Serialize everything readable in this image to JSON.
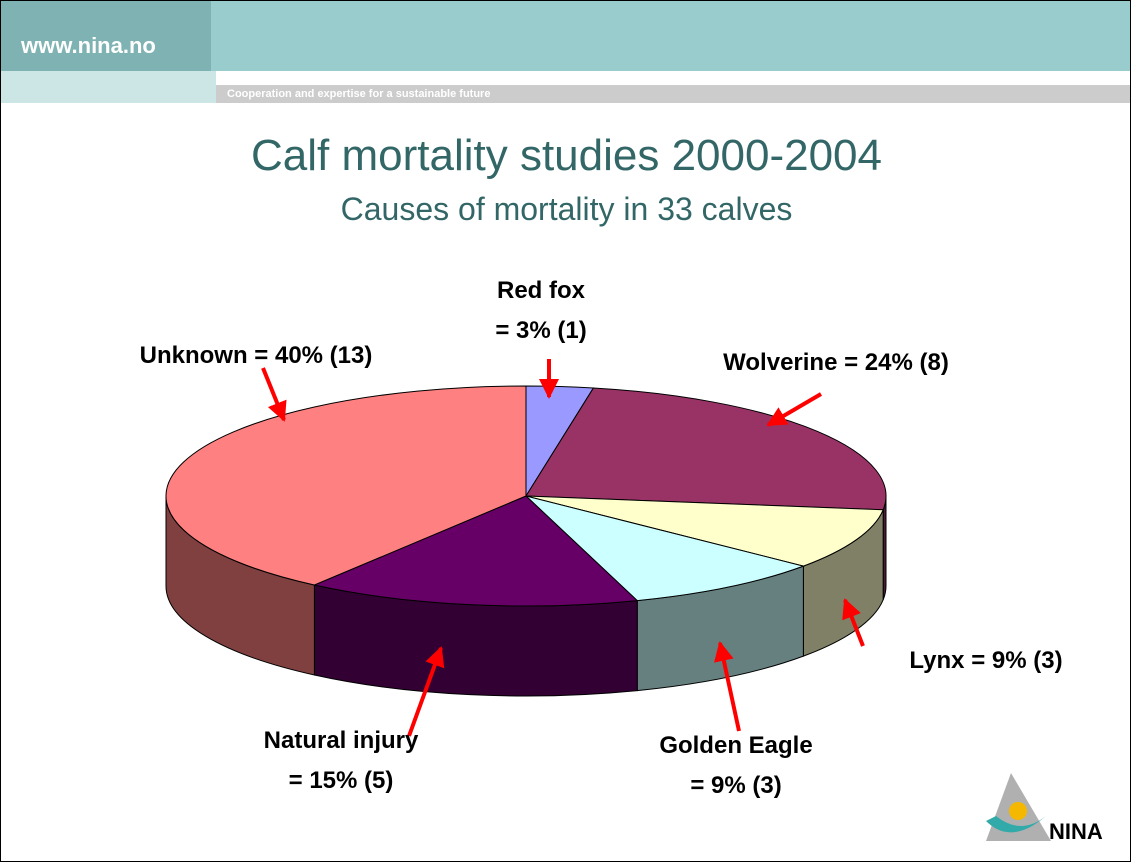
{
  "header": {
    "site": "www.nina.no",
    "tagline": "Cooperation and expertise for a sustainable future"
  },
  "chart_data": {
    "type": "pie",
    "title": "Calf mortality studies 2000-2004",
    "subtitle": "Causes of mortality in 33 calves",
    "categories": [
      "Red fox",
      "Wolverine",
      "Lynx",
      "Golden Eagle",
      "Natural injury",
      "Unknown"
    ],
    "values": [
      3,
      24,
      9,
      9,
      15,
      40
    ],
    "value_labels": [
      "= 3% (1)",
      "= 24% (8)",
      "= 9% (3)",
      "= 9% (3)",
      "= 15% (5)",
      "= 40% (13)"
    ],
    "colors": [
      "#9999ff",
      "#993366",
      "#ffffcc",
      "#ccffff",
      "#660066",
      "#ff8080"
    ]
  },
  "logo": {
    "text": "NINA"
  }
}
